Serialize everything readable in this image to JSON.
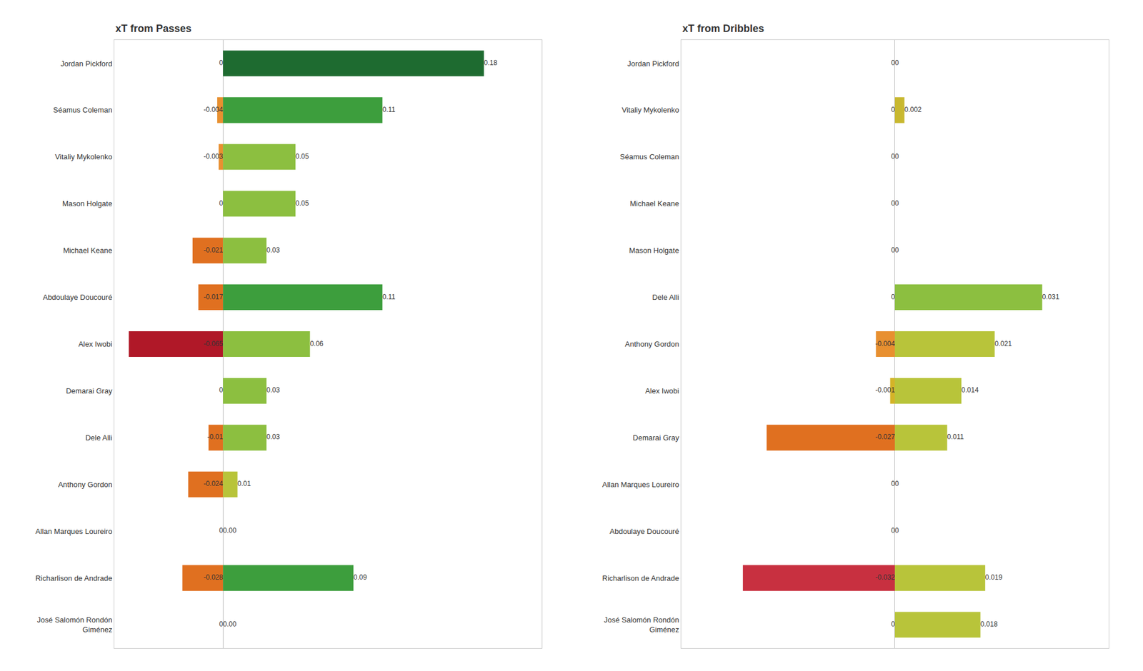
{
  "chart_data": [
    {
      "type": "bar",
      "title": "xT from Passes",
      "orientation": "horizontal",
      "categories": [
        "Jordan Pickford",
        "Séamus Coleman",
        "Vitaliy Mykolenko",
        "Mason Holgate",
        "Michael Keane",
        "Abdoulaye Doucouré",
        "Alex Iwobi",
        "Demarai Gray",
        "Dele Alli",
        "Anthony Gordon",
        "Allan Marques Loureiro",
        "Richarlison de Andrade",
        "José Salomón Rondón\nGiménez"
      ],
      "series": [
        {
          "values": [
            0,
            -0.004,
            -0.003,
            0,
            -0.021,
            -0.017,
            -0.065,
            0,
            -0.01,
            -0.024,
            0,
            -0.028,
            0
          ],
          "value_labels": [
            "0",
            "-0.004",
            "-0.003",
            "0",
            "-0.021",
            "-0.017",
            "-0.065",
            "0",
            "-0.01",
            "-0.024",
            "0",
            "-0.028",
            "0"
          ],
          "colors": [
            "#d4b428",
            "#e89030",
            "#e89030",
            "#d4b428",
            "#e07020",
            "#e07020",
            "#b01828",
            "#d4b428",
            "#e07020",
            "#e07020",
            "#d4b428",
            "#e07020",
            "#d4b428"
          ]
        },
        {
          "values": [
            0.18,
            0.11,
            0.05,
            0.05,
            0.03,
            0.11,
            0.06,
            0.03,
            0.03,
            0.01,
            0.0,
            0.09,
            0.0
          ],
          "value_labels": [
            "0.18",
            "0.11",
            "0.05",
            "0.05",
            "0.03",
            "0.11",
            "0.06",
            "0.03",
            "0.03",
            "0.01",
            "0.00",
            "0.09",
            "0.00"
          ],
          "colors": [
            "#1e6b30",
            "#3d9e3d",
            "#8cbf40",
            "#8cbf40",
            "#8cbf40",
            "#3d9e3d",
            "#8cbf40",
            "#8cbf40",
            "#8cbf40",
            "#b8c43a",
            "#c8b830",
            "#3d9e3d",
            "#c8b830"
          ]
        }
      ],
      "xlim": [
        -0.075,
        0.22
      ],
      "grid": false,
      "data_labels": true,
      "tick_labels": "y"
    },
    {
      "type": "bar",
      "title": "xT from Dribbles",
      "orientation": "horizontal",
      "categories": [
        "Jordan Pickford",
        "Vitaliy Mykolenko",
        "Séamus Coleman",
        "Michael Keane",
        "Mason Holgate",
        "Dele Alli",
        "Anthony Gordon",
        "Alex Iwobi",
        "Demarai Gray",
        "Allan Marques Loureiro",
        "Abdoulaye Doucouré",
        "Richarlison de Andrade",
        "José Salomón Rondón\nGiménez"
      ],
      "series": [
        {
          "values": [
            0,
            0,
            0,
            0,
            0,
            0,
            -0.004,
            -0.001,
            -0.027,
            0,
            0,
            -0.032,
            0
          ],
          "value_labels": [
            "0",
            "0",
            "0",
            "0",
            "0",
            "0",
            "-0.004",
            "-0.001",
            "-0.027",
            "0",
            "0",
            "-0.032",
            "0"
          ],
          "colors": [
            "#d4b428",
            "#d4b428",
            "#d4b428",
            "#d4b428",
            "#d4b428",
            "#d4b428",
            "#e89030",
            "#d4b428",
            "#e07020",
            "#d4b428",
            "#d4b428",
            "#c83040",
            "#d4b428"
          ]
        },
        {
          "values": [
            0.0,
            0.002,
            0.0,
            0.0,
            0.0,
            0.031,
            0.021,
            0.014,
            0.011,
            0.0,
            0.0,
            0.019,
            0.018
          ],
          "value_labels": [
            "0",
            "0.002",
            "0",
            "0",
            "0",
            "0.031",
            "0.021",
            "0.014",
            "0.011",
            "0",
            "0",
            "0.019",
            "0.018"
          ],
          "colors": [
            "#c8b830",
            "#c8b830",
            "#c8b830",
            "#c8b830",
            "#c8b830",
            "#8cbf40",
            "#b8c43a",
            "#b8c43a",
            "#b8c43a",
            "#c8b830",
            "#c8b830",
            "#b8c43a",
            "#b8c43a"
          ]
        }
      ],
      "xlim": [
        -0.045,
        0.045
      ],
      "grid": false,
      "data_labels": true,
      "tick_labels": "y"
    }
  ]
}
